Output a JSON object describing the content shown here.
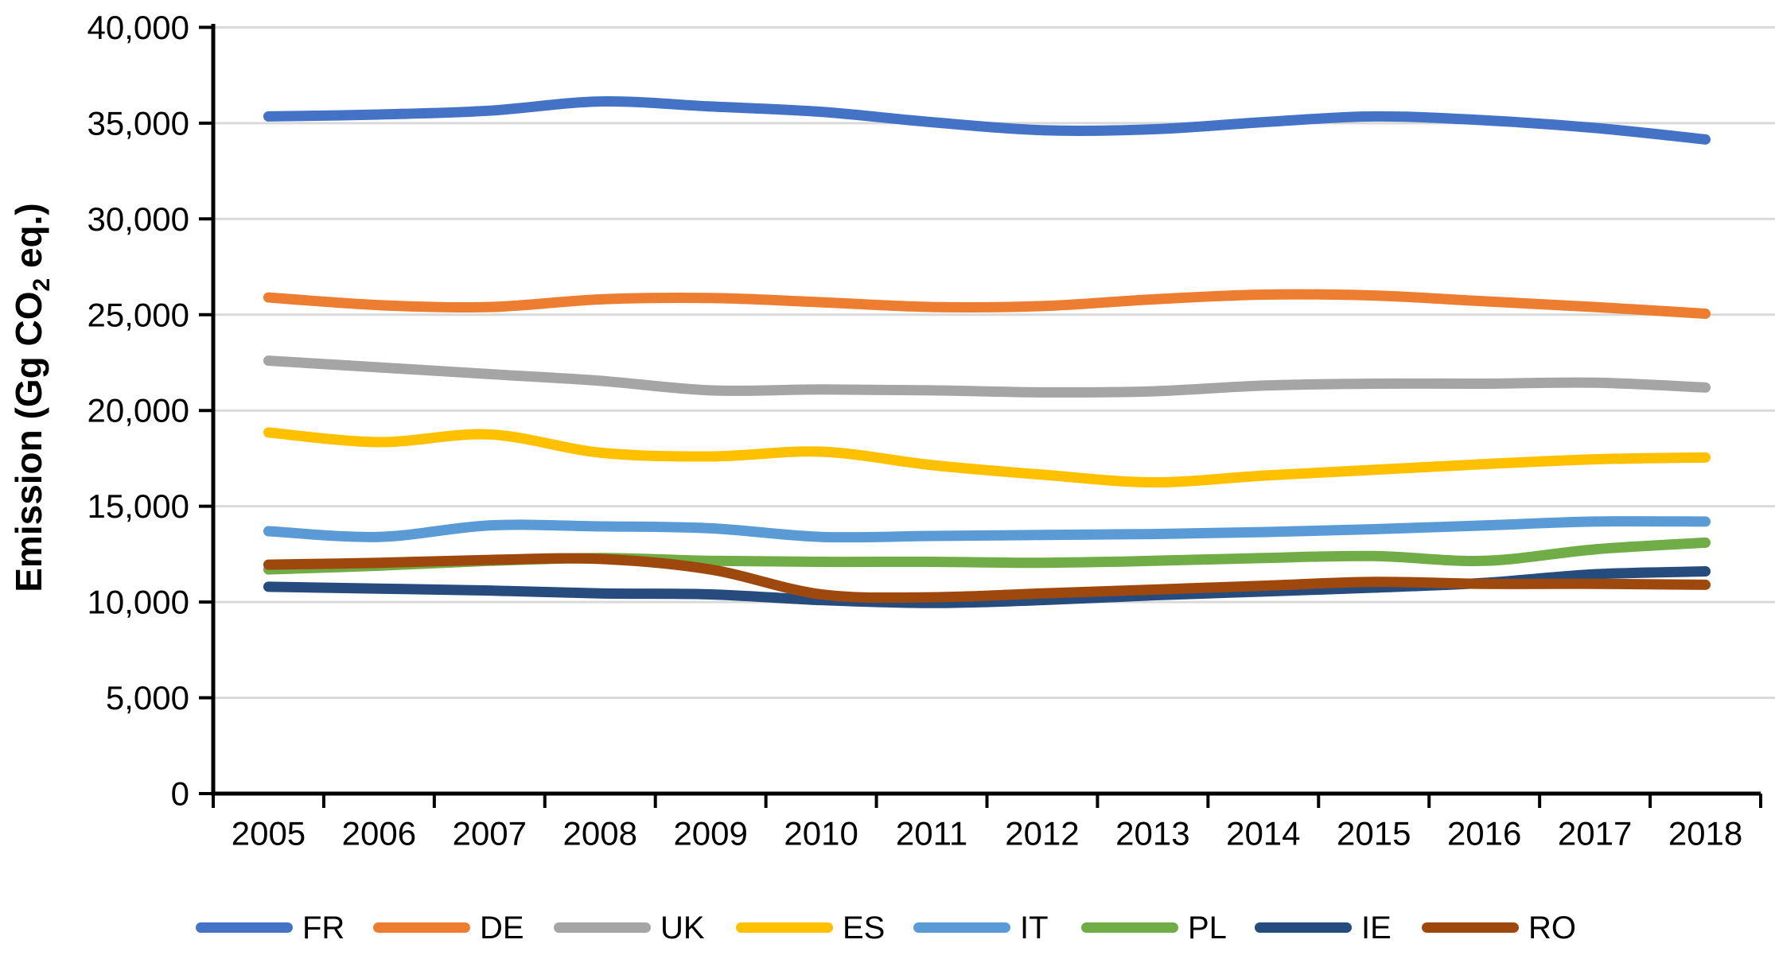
{
  "chart_data": {
    "type": "line",
    "title": "",
    "ylabel_parts": {
      "pre": "Emission (Gg CO",
      "sub": "2",
      "post": " eq.)"
    },
    "x": [
      "2005",
      "2006",
      "2007",
      "2008",
      "2009",
      "2010",
      "2011",
      "2012",
      "2013",
      "2014",
      "2015",
      "2016",
      "2017",
      "2018"
    ],
    "ylim": [
      0,
      40000
    ],
    "ytick_step": 5000,
    "ytick_values": [
      0,
      5000,
      10000,
      15000,
      20000,
      25000,
      30000,
      35000,
      40000
    ],
    "ytick_labels": [
      "0",
      "5,000",
      "10,000",
      "15,000",
      "20,000",
      "25,000",
      "30,000",
      "35,000",
      "40,000"
    ],
    "grid": true,
    "smooth": true,
    "legend_position": "bottom",
    "colors": {
      "axis": "#000000",
      "gridline": "#d9d9d9",
      "background": "#ffffff"
    },
    "series": [
      {
        "name": "FR",
        "color": "#4472c4",
        "values": [
          35350,
          35450,
          35650,
          36130,
          35870,
          35590,
          35050,
          34630,
          34680,
          35050,
          35350,
          35150,
          34750,
          34150
        ]
      },
      {
        "name": "DE",
        "color": "#ed7d31",
        "values": [
          25900,
          25500,
          25400,
          25800,
          25870,
          25650,
          25400,
          25450,
          25800,
          26050,
          26000,
          25700,
          25400,
          25050
        ]
      },
      {
        "name": "UK",
        "color": "#a5a5a5",
        "values": [
          22600,
          22250,
          21900,
          21550,
          21050,
          21100,
          21050,
          20950,
          21000,
          21300,
          21400,
          21400,
          21450,
          21200
        ]
      },
      {
        "name": "ES",
        "color": "#ffc000",
        "values": [
          18850,
          18350,
          18750,
          17800,
          17600,
          17850,
          17150,
          16650,
          16250,
          16600,
          16900,
          17200,
          17450,
          17550
        ]
      },
      {
        "name": "IT",
        "color": "#5b9bd5",
        "values": [
          13700,
          13400,
          14000,
          13950,
          13850,
          13400,
          13450,
          13500,
          13550,
          13650,
          13800,
          14000,
          14200,
          14200
        ]
      },
      {
        "name": "PL",
        "color": "#70ad47",
        "values": [
          11700,
          11900,
          12150,
          12300,
          12150,
          12100,
          12100,
          12050,
          12150,
          12300,
          12400,
          12150,
          12750,
          13100
        ]
      },
      {
        "name": "IE",
        "color": "#264c7d",
        "values": [
          10800,
          10700,
          10600,
          10450,
          10400,
          10100,
          9950,
          10100,
          10350,
          10550,
          10750,
          11000,
          11450,
          11600
        ]
      },
      {
        "name": "RO",
        "color": "#9e480e",
        "values": [
          11950,
          12050,
          12200,
          12250,
          11700,
          10400,
          10250,
          10450,
          10650,
          10850,
          11050,
          10950,
          10950,
          10900
        ]
      }
    ]
  }
}
